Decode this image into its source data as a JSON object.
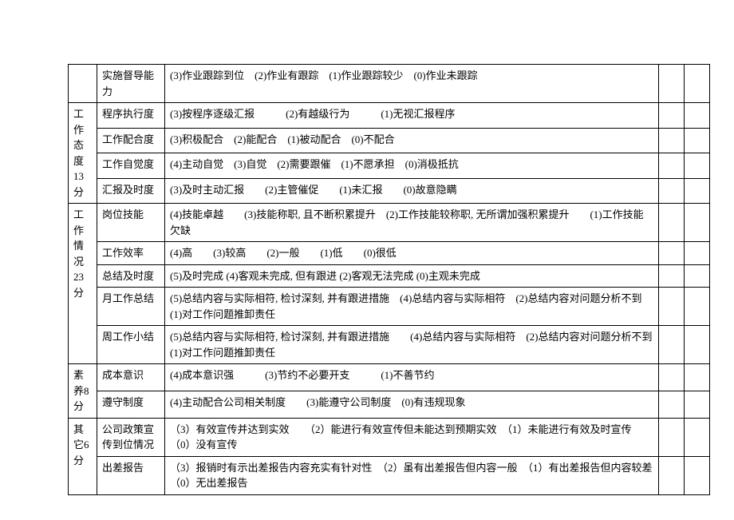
{
  "font": {
    "family": "SimSun",
    "size_pt": 10
  },
  "colors": {
    "border": "#000000",
    "bg": "#ffffff",
    "text": "#000000"
  },
  "columns": {
    "category_w": 36,
    "item_w": 85,
    "score_w": 32
  },
  "rows": [
    {
      "category": "",
      "category_rowspan": 1,
      "item": "实施督导能力",
      "desc": "(3)作业跟踪到位　(2)作业有跟踪　(1)作业跟踪较少　(0)作业未跟踪"
    },
    {
      "category": "工作态度13分",
      "category_rowspan": 4,
      "item": "程序执行度",
      "desc": "(3)按程序逐级汇报　　　(2)有越级行为　　　(1)无视汇报程序"
    },
    {
      "item": "工作配合度",
      "desc": "(3)积极配合　(2)能配合　(1)被动配合　(0)不配合"
    },
    {
      "item": "工作自觉度",
      "desc": "(4)主动自觉　(3)自觉　(2)需要跟催　(1)不愿承担　(0)消极抵抗"
    },
    {
      "item": "汇报及时度",
      "desc": "(3)及时主动汇报　　(2)主管催促　　(1)未汇报　　(0)故意隐瞒"
    },
    {
      "category": "工作情况23分",
      "category_rowspan": 5,
      "item": "岗位技能",
      "desc": "(4)技能卓越　　(3)技能称职, 且不断积累提升　(2)工作技能较称职, 无所谓加强积累提升　　(1)工作技能欠缺"
    },
    {
      "item": "工作效率",
      "desc": "(4)高　　(3)较高　　(2)一般　　(1)低　　(0)很低"
    },
    {
      "item": "总结及时度",
      "desc": "(5)及时完成 (4)客观未完成, 但有跟进 (2)客观无法完成 (0)主观未完成"
    },
    {
      "item": "月工作总结",
      "desc": "(5)总结内容与实际相符, 检讨深刻, 并有跟进措施　(4)总结内容与实际相符　(2)总结内容对问题分析不到　(1)对工作问题推卸责任"
    },
    {
      "item": "周工作小结",
      "desc": "(5)总结内容与实际相符, 检讨深刻, 并有跟进措施　　(4)总结内容与实际相符　(2)总结内容对问题分析不到　(1)对工作问题推卸责任"
    },
    {
      "category": "素养8分",
      "category_rowspan": 2,
      "item": "成本意识",
      "desc": "(4)成本意识强　　　(3)节约不必要开支　　　(1)不善节约"
    },
    {
      "item": "遵守制度",
      "desc": "(4)主动配合公司相关制度　　(3)能遵守公司制度　(0)有违规现象"
    },
    {
      "category": "其它6分",
      "category_rowspan": 2,
      "item": "公司政策宣传到位情况",
      "desc": "（3）有效宣传并达到实效　　（2）能进行有效宣传但未能达到预期实效　（1）未能进行有效及时宣传　（0）没有宣传"
    },
    {
      "item": "出差报告",
      "desc": "（3）报销时有示出差报告内容充实有针对性　（2）虽有出差报告但内容一般　（1）有出差报告但内容较差　　　　　　　（0）无出差报告"
    }
  ]
}
